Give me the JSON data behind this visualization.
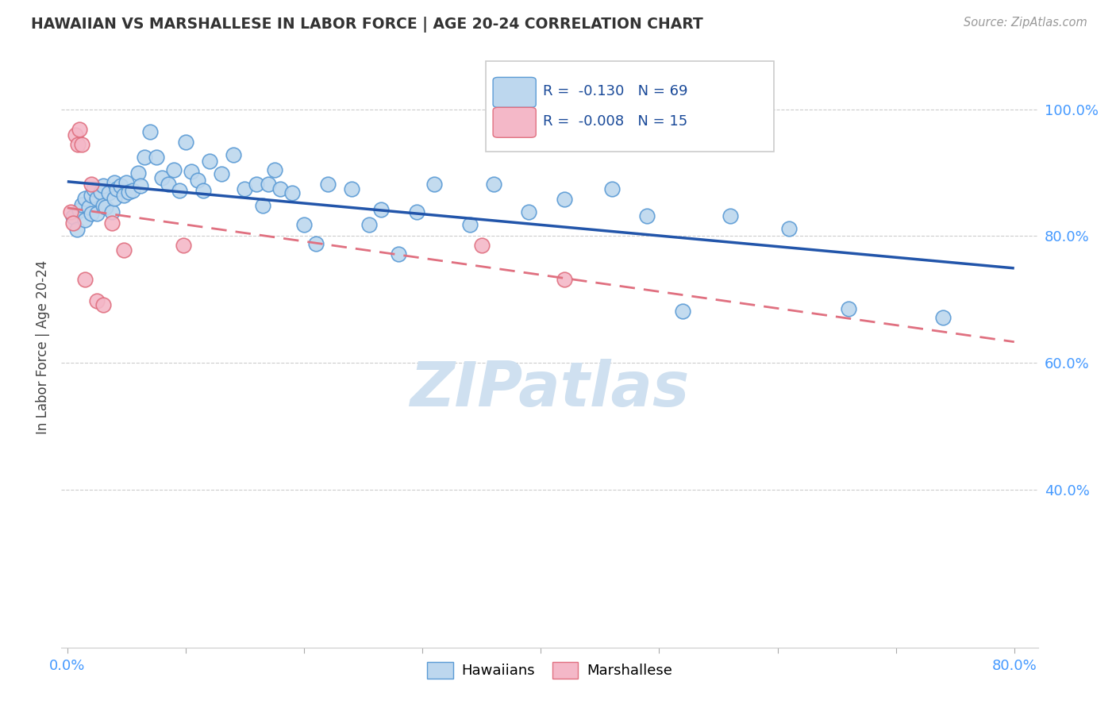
{
  "title": "HAWAIIAN VS MARSHALLESE IN LABOR FORCE | AGE 20-24 CORRELATION CHART",
  "source_text": "Source: ZipAtlas.com",
  "ylabel": "In Labor Force | Age 20-24",
  "x_tick_values": [
    0.0,
    0.1,
    0.2,
    0.3,
    0.4,
    0.5,
    0.6,
    0.7,
    0.8
  ],
  "x_tick_labels_only_ends": true,
  "y_tick_values": [
    0.4,
    0.6,
    0.8,
    1.0
  ],
  "y_tick_labels": [
    "40.0%",
    "60.0%",
    "80.0%",
    "100.0%"
  ],
  "xlim": [
    -0.005,
    0.82
  ],
  "ylim": [
    0.15,
    1.1
  ],
  "hawaiian_R": "-0.130",
  "hawaiian_N": "69",
  "marshallese_R": "-0.008",
  "marshallese_N": "15",
  "hawaiian_fill": "#bdd7ee",
  "hawaiian_edge": "#5b9bd5",
  "marshallese_fill": "#f4b8c8",
  "marshallese_edge": "#e07080",
  "hawaiian_line_color": "#2255aa",
  "marshallese_line_color": "#e07080",
  "watermark_color": "#cfe0f0",
  "background_color": "#ffffff",
  "grid_color": "#cccccc",
  "right_tick_color": "#4499ff",
  "title_color": "#333333",
  "source_color": "#999999",
  "hawaiian_x": [
    0.005,
    0.008,
    0.01,
    0.012,
    0.015,
    0.015,
    0.018,
    0.02,
    0.02,
    0.022,
    0.025,
    0.025,
    0.028,
    0.03,
    0.03,
    0.032,
    0.035,
    0.038,
    0.04,
    0.04,
    0.042,
    0.045,
    0.048,
    0.05,
    0.052,
    0.055,
    0.06,
    0.062,
    0.065,
    0.07,
    0.075,
    0.08,
    0.085,
    0.09,
    0.095,
    0.1,
    0.105,
    0.11,
    0.115,
    0.12,
    0.13,
    0.14,
    0.15,
    0.16,
    0.165,
    0.17,
    0.175,
    0.18,
    0.19,
    0.2,
    0.21,
    0.22,
    0.24,
    0.255,
    0.265,
    0.28,
    0.295,
    0.31,
    0.34,
    0.36,
    0.39,
    0.42,
    0.46,
    0.49,
    0.52,
    0.56,
    0.61,
    0.66,
    0.74
  ],
  "hawaiian_y": [
    0.83,
    0.81,
    0.84,
    0.85,
    0.86,
    0.825,
    0.845,
    0.865,
    0.835,
    0.875,
    0.86,
    0.835,
    0.87,
    0.88,
    0.848,
    0.845,
    0.868,
    0.838,
    0.885,
    0.86,
    0.875,
    0.88,
    0.865,
    0.885,
    0.87,
    0.872,
    0.9,
    0.88,
    0.925,
    0.965,
    0.925,
    0.892,
    0.882,
    0.905,
    0.872,
    0.948,
    0.902,
    0.888,
    0.872,
    0.918,
    0.898,
    0.928,
    0.875,
    0.882,
    0.848,
    0.882,
    0.905,
    0.875,
    0.868,
    0.818,
    0.788,
    0.882,
    0.875,
    0.818,
    0.842,
    0.772,
    0.838,
    0.882,
    0.818,
    0.882,
    0.838,
    0.858,
    0.875,
    0.832,
    0.682,
    0.832,
    0.812,
    0.685,
    0.672
  ],
  "marshallese_x": [
    0.003,
    0.005,
    0.007,
    0.009,
    0.01,
    0.012,
    0.015,
    0.02,
    0.025,
    0.03,
    0.038,
    0.048,
    0.098,
    0.35,
    0.42
  ],
  "marshallese_y": [
    0.838,
    0.82,
    0.96,
    0.945,
    0.968,
    0.945,
    0.732,
    0.882,
    0.698,
    0.692,
    0.82,
    0.778,
    0.785,
    0.785,
    0.732
  ]
}
